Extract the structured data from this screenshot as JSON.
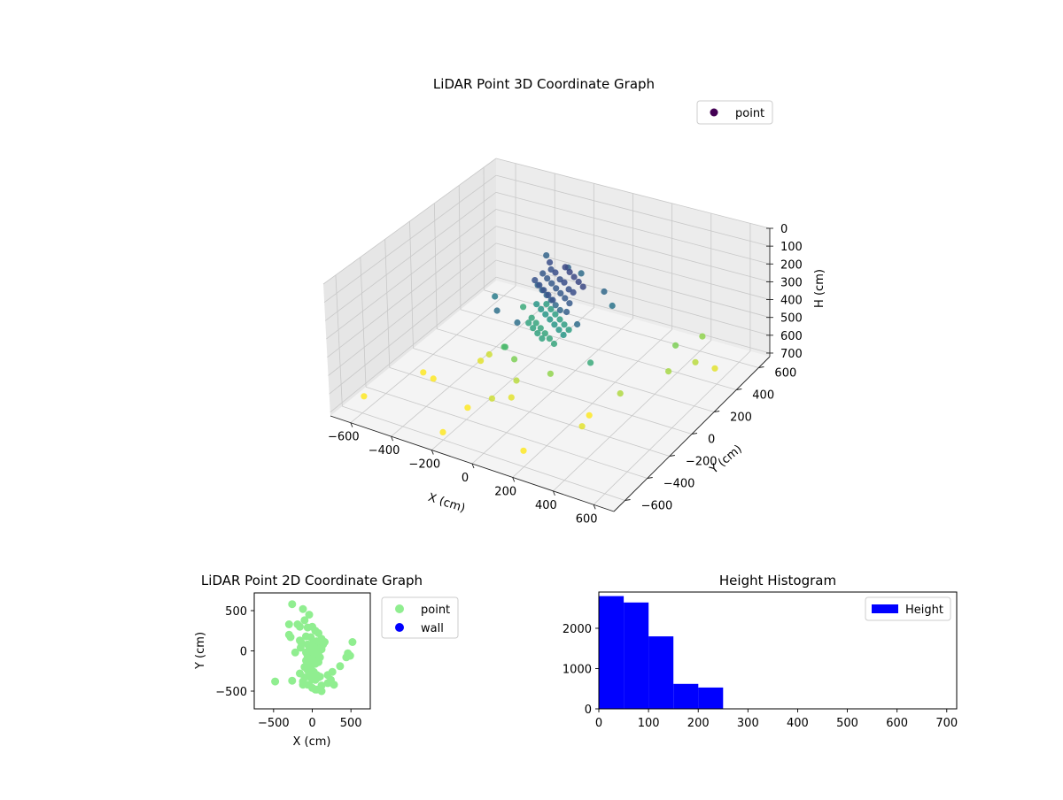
{
  "chart_data": [
    {
      "type": "scatter",
      "title": "LiDAR Point 3D Coordinate Graph",
      "xlabel": "X (cm)",
      "ylabel": "Y (cm)",
      "zlabel": "H (cm)",
      "xlim": [
        -700,
        700
      ],
      "ylim": [
        -700,
        700
      ],
      "zlim": [
        0,
        720
      ],
      "z_inverted": true,
      "xticks": [
        -600,
        -400,
        -200,
        0,
        200,
        400,
        600
      ],
      "yticks": [
        -600,
        -400,
        -200,
        0,
        200,
        400,
        600
      ],
      "zticks": [
        0,
        100,
        200,
        300,
        400,
        500,
        600,
        700
      ],
      "xtick_labels": [
        "−600",
        "−400",
        "−200",
        "0",
        "200",
        "400",
        "600"
      ],
      "ytick_labels": [
        "−600",
        "−400",
        "−200",
        "0",
        "200",
        "400",
        "600"
      ],
      "ztick_labels": [
        "0",
        "100",
        "200",
        "300",
        "400",
        "500",
        "600",
        "700"
      ],
      "grid": true,
      "legend": {
        "position": "top-right",
        "entries": [
          {
            "name": "point",
            "color": "#440154"
          }
        ]
      },
      "colormap": "viridis",
      "series": [
        {
          "name": "point",
          "points": [
            [
              -110,
              180,
              150
            ],
            [
              -80,
              140,
              160
            ],
            [
              -40,
              110,
              150
            ],
            [
              0,
              80,
              160
            ],
            [
              40,
              50,
              150
            ],
            [
              80,
              20,
              160
            ],
            [
              120,
              -10,
              150
            ],
            [
              -110,
              120,
              180
            ],
            [
              -70,
              90,
              180
            ],
            [
              -30,
              60,
              180
            ],
            [
              10,
              30,
              180
            ],
            [
              50,
              0,
              180
            ],
            [
              90,
              -30,
              180
            ],
            [
              130,
              -60,
              180
            ],
            [
              -100,
              60,
              210
            ],
            [
              -60,
              30,
              210
            ],
            [
              -20,
              0,
              210
            ],
            [
              20,
              -30,
              210
            ],
            [
              60,
              -60,
              210
            ],
            [
              100,
              -90,
              210
            ],
            [
              -90,
              20,
              160
            ],
            [
              -50,
              -10,
              160
            ],
            [
              -10,
              -40,
              160
            ],
            [
              30,
              -70,
              160
            ],
            [
              70,
              -100,
              160
            ],
            [
              -20,
              160,
              140
            ],
            [
              20,
              130,
              140
            ],
            [
              60,
              100,
              140
            ],
            [
              100,
              70,
              140
            ],
            [
              140,
              40,
              140
            ],
            [
              -120,
              80,
              330
            ],
            [
              -80,
              50,
              330
            ],
            [
              -40,
              20,
              330
            ],
            [
              0,
              -10,
              330
            ],
            [
              40,
              -40,
              330
            ],
            [
              80,
              -70,
              330
            ],
            [
              120,
              -100,
              330
            ],
            [
              -100,
              130,
              350
            ],
            [
              -60,
              100,
              350
            ],
            [
              -20,
              70,
              350
            ],
            [
              20,
              40,
              350
            ],
            [
              60,
              10,
              350
            ],
            [
              100,
              -20,
              350
            ],
            [
              -110,
              20,
              370
            ],
            [
              -70,
              -10,
              370
            ],
            [
              -30,
              -40,
              370
            ],
            [
              10,
              -70,
              370
            ],
            [
              50,
              -100,
              370
            ],
            [
              90,
              -130,
              370
            ],
            [
              -90,
              -40,
              360
            ],
            [
              -50,
              -70,
              360
            ],
            [
              -10,
              -100,
              360
            ],
            [
              30,
              -130,
              360
            ],
            [
              -60,
              250,
              200
            ],
            [
              150,
              -120,
              190
            ],
            [
              -200,
              300,
              200
            ],
            [
              180,
              150,
              210
            ],
            [
              220,
              -150,
              220
            ],
            [
              -150,
              -200,
              230
            ],
            [
              -250,
              -50,
              260
            ],
            [
              250,
              100,
              240
            ],
            [
              0,
              260,
              220
            ],
            [
              -20,
              -250,
              230
            ],
            [
              300,
              -180,
              380
            ],
            [
              -200,
              100,
              380
            ],
            [
              -150,
              -150,
              450
            ],
            [
              -120,
              -190,
              420
            ],
            [
              -100,
              -150,
              500
            ],
            [
              -300,
              -100,
              600
            ],
            [
              -280,
              -60,
              580
            ],
            [
              -50,
              -220,
              560
            ],
            [
              -80,
              -380,
              580
            ],
            [
              -30,
              -300,
              600
            ],
            [
              -420,
              -300,
              630
            ],
            [
              -500,
              -250,
              650
            ],
            [
              -180,
              -420,
              640
            ],
            [
              80,
              -150,
              520
            ],
            [
              400,
              -100,
              550
            ],
            [
              500,
              150,
              540
            ],
            [
              450,
              300,
              500
            ],
            [
              500,
              450,
              520
            ],
            [
              550,
              300,
              560
            ],
            [
              620,
              350,
              600
            ],
            [
              -200,
              -600,
              680
            ],
            [
              -650,
              -500,
              700
            ],
            [
              200,
              -600,
              640
            ],
            [
              300,
              -200,
              640
            ],
            [
              350,
              -350,
              600
            ]
          ]
        }
      ]
    },
    {
      "type": "scatter",
      "title": "LiDAR Point 2D Coordinate Graph",
      "xlabel": "X (cm)",
      "ylabel": "Y (cm)",
      "xlim": [
        -750,
        750
      ],
      "ylim": [
        -720,
        720
      ],
      "xticks": [
        -500,
        0,
        500
      ],
      "yticks": [
        -500,
        0,
        500
      ],
      "xtick_labels": [
        "−500",
        "0",
        "500"
      ],
      "ytick_labels": [
        "−500",
        "0",
        "500"
      ],
      "grid": false,
      "legend": {
        "position": "outside-right",
        "entries": [
          {
            "name": "point",
            "color": "#90ee90"
          },
          {
            "name": "wall",
            "color": "#0000ff"
          }
        ]
      },
      "series": [
        {
          "name": "point",
          "color": "#90ee90",
          "x": [
            -260,
            -120,
            -40,
            -190,
            -300,
            -300,
            -280,
            -160,
            -100,
            -60,
            0,
            40,
            80,
            120,
            160,
            -80,
            -20,
            20,
            60,
            100,
            140,
            -60,
            0,
            40,
            80,
            120,
            -40,
            0,
            40,
            80,
            -60,
            -20,
            20,
            60,
            100,
            -80,
            -40,
            0,
            40,
            80,
            -100,
            -60,
            -20,
            20,
            60,
            -40,
            0,
            40,
            80,
            -120,
            -60,
            0,
            60,
            120,
            200,
            260,
            360,
            440,
            460,
            490,
            520,
            -480,
            -260,
            -160,
            -120,
            -40,
            40,
            120,
            200,
            280,
            -100,
            -20,
            20,
            100,
            240,
            -220,
            -150,
            0,
            60,
            -80,
            -40,
            20,
            -140,
            -160
          ],
          "y": [
            580,
            520,
            450,
            330,
            330,
            200,
            170,
            300,
            380,
            290,
            300,
            250,
            220,
            150,
            110,
            180,
            170,
            120,
            120,
            100,
            80,
            80,
            60,
            40,
            30,
            20,
            10,
            0,
            -10,
            -20,
            -60,
            -80,
            -60,
            -40,
            -80,
            -120,
            -150,
            -100,
            -160,
            -140,
            -200,
            -240,
            -210,
            -260,
            -300,
            -320,
            -350,
            -360,
            -330,
            -380,
            -420,
            -460,
            -480,
            -430,
            -300,
            -260,
            -190,
            -80,
            -30,
            -60,
            110,
            -380,
            -370,
            -280,
            -420,
            -420,
            -480,
            -500,
            -400,
            -420,
            -330,
            -250,
            -270,
            -320,
            -360,
            -20,
            40,
            70,
            20,
            -20,
            10,
            -30,
            100,
            130
          ]
        },
        {
          "name": "wall",
          "color": "#0000ff",
          "x": [],
          "y": []
        }
      ]
    },
    {
      "type": "bar",
      "title": "Height Histogram",
      "xlabel": "",
      "ylabel": "",
      "xlim": [
        0,
        720
      ],
      "ylim": [
        0,
        2900
      ],
      "xticks": [
        0,
        100,
        200,
        300,
        400,
        500,
        600,
        700
      ],
      "yticks": [
        0,
        1000,
        2000
      ],
      "xtick_labels": [
        "0",
        "100",
        "200",
        "300",
        "400",
        "500",
        "600",
        "700"
      ],
      "ytick_labels": [
        "0",
        "1000",
        "2000"
      ],
      "legend": {
        "position": "top-right",
        "entries": [
          {
            "name": "Height",
            "color": "#0000ff"
          }
        ]
      },
      "bin_edges": [
        0,
        50,
        100,
        150,
        200,
        250,
        300,
        350,
        400,
        450,
        500,
        550,
        600,
        650,
        700
      ],
      "series": [
        {
          "name": "Height",
          "color": "#0000ff",
          "values": [
            2800,
            2640,
            1800,
            620,
            530,
            0,
            0,
            0,
            0,
            0,
            0,
            0,
            0,
            0
          ]
        }
      ]
    }
  ]
}
